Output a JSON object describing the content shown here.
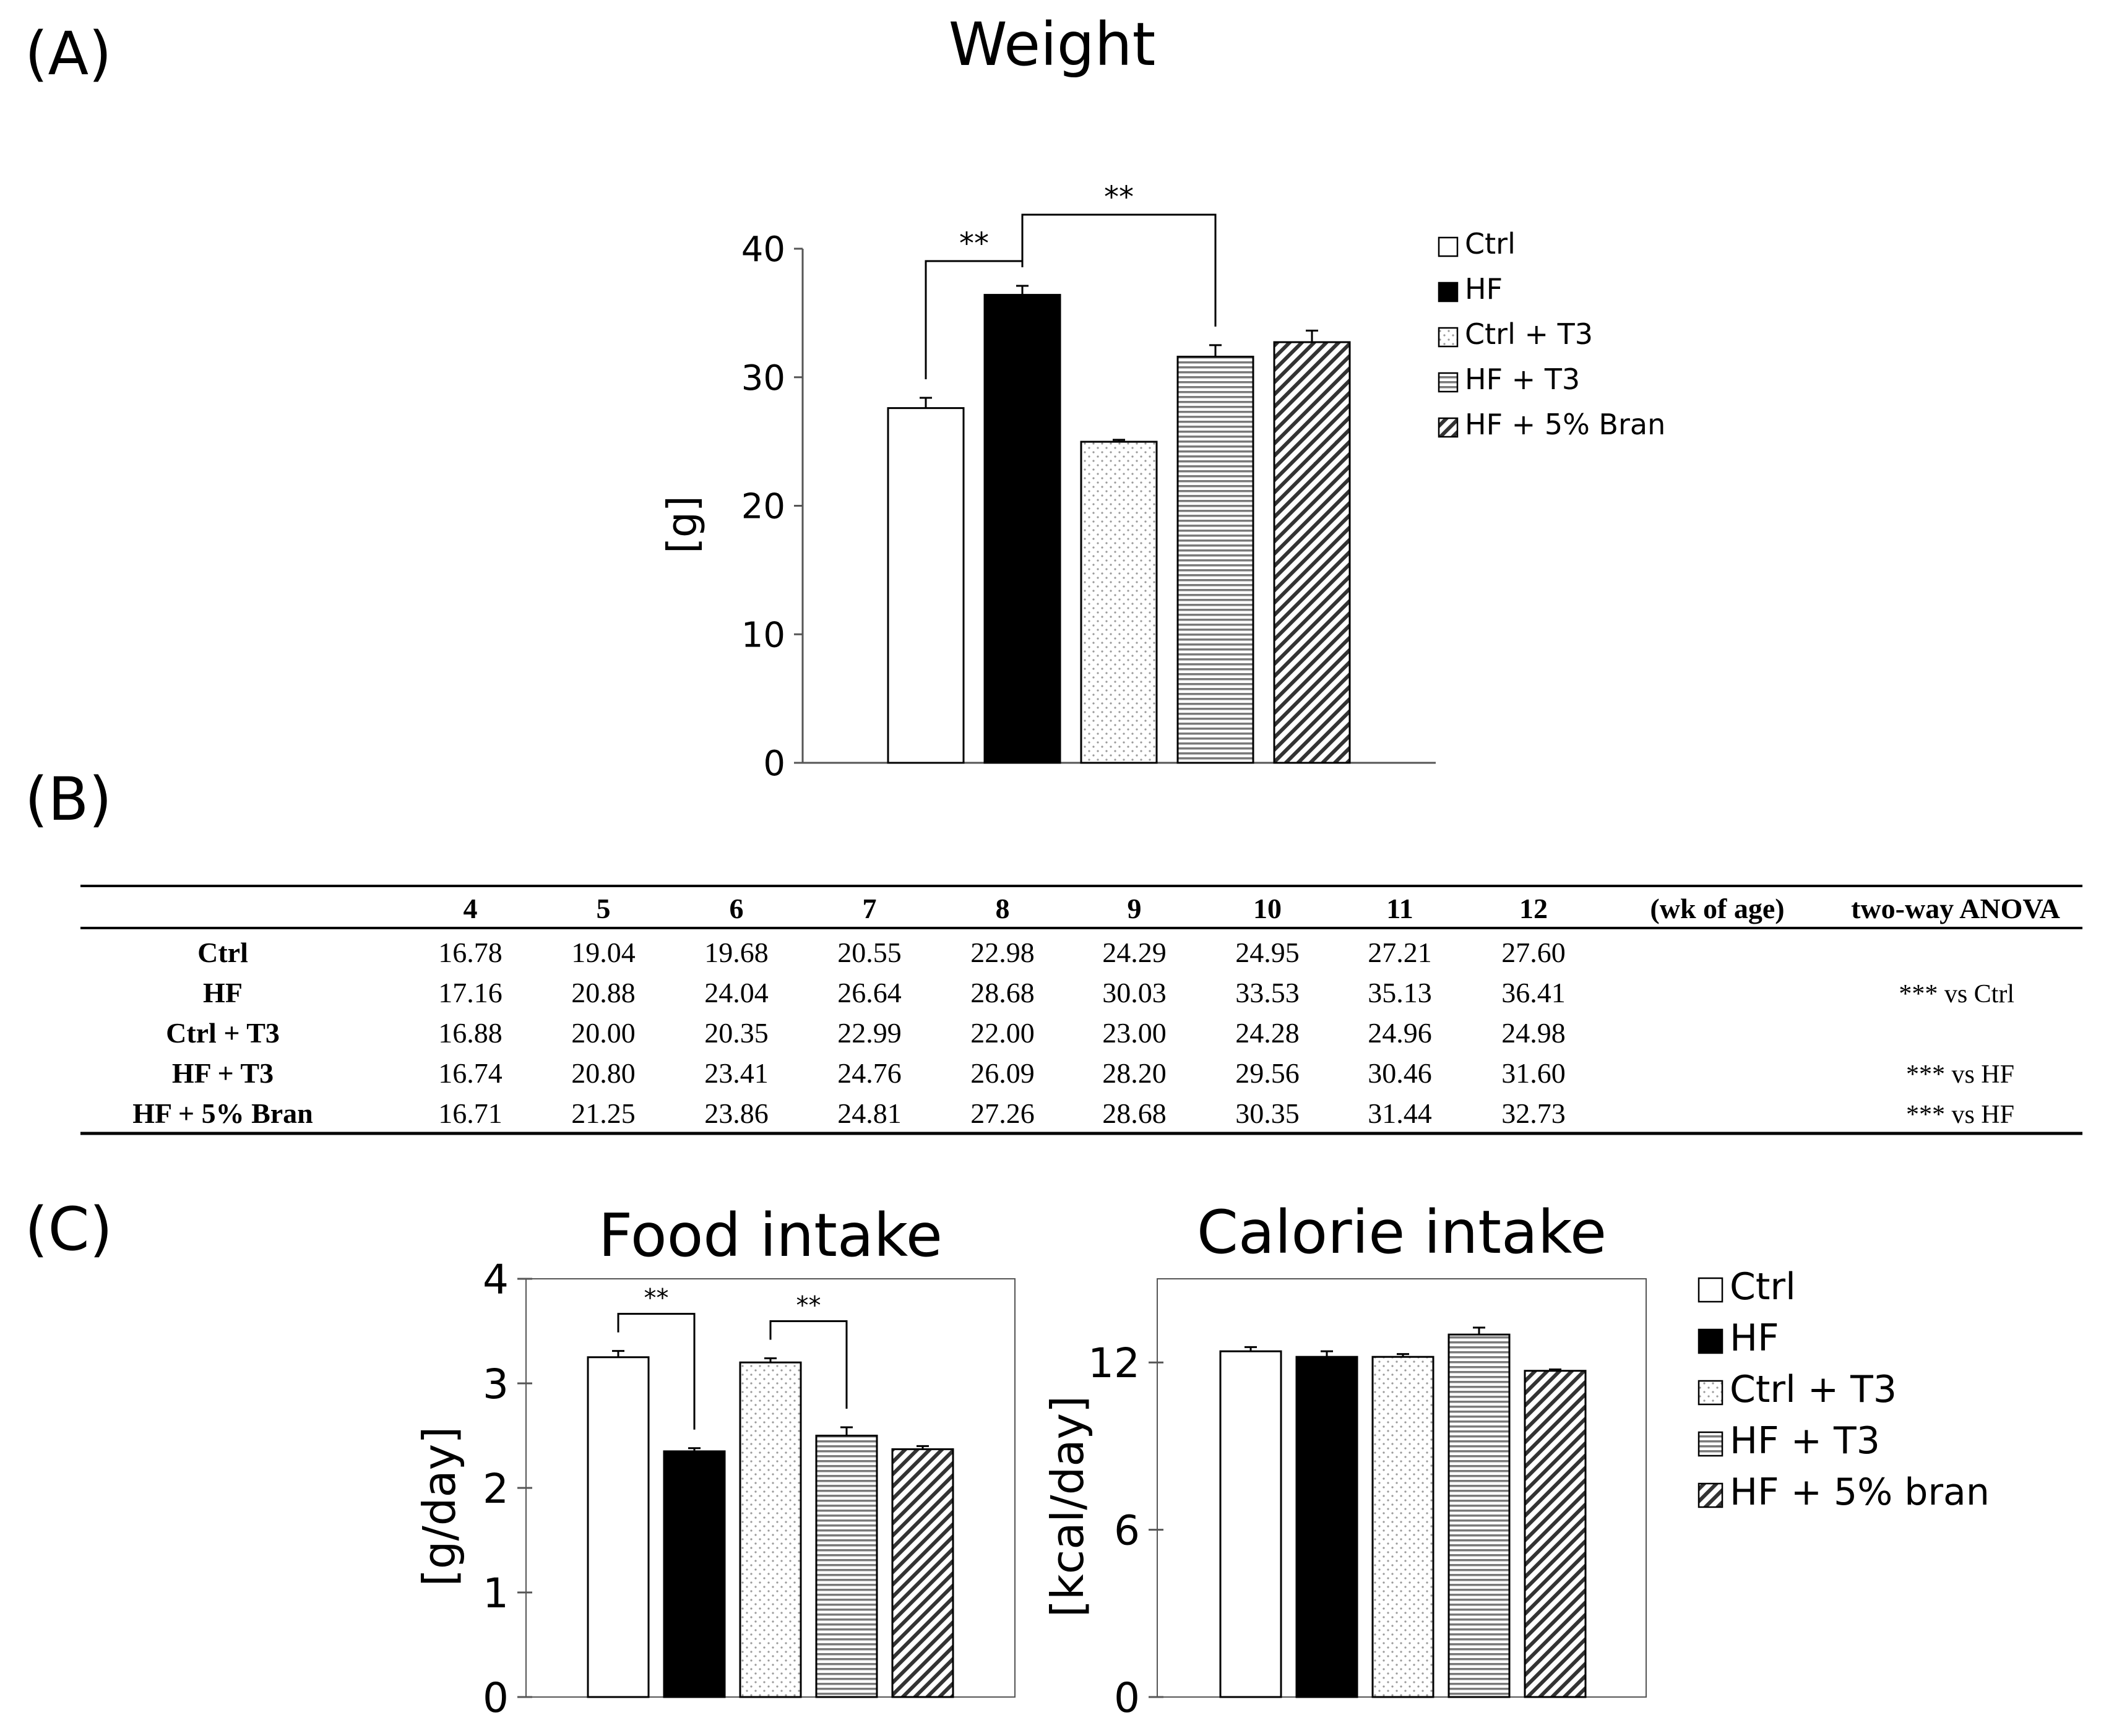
{
  "colors": {
    "ink": "#000000",
    "paper": "#ffffff",
    "dots": "#9a9a9a",
    "stripes": "#7a7a7a",
    "hatch": "#333333",
    "axis": "#555555"
  },
  "panel_a": {
    "label": "(A)",
    "chart_data": {
      "type": "bar",
      "title": "Weight",
      "ylabel": "[g]",
      "xlabel": "",
      "ylim": [
        0,
        40
      ],
      "yticks": [
        0,
        10,
        20,
        30,
        40
      ],
      "categories": [
        "Ctrl",
        "HF",
        "Ctrl + T3",
        "HF + T3",
        "HF + 5% Bran"
      ],
      "values": [
        27.6,
        36.41,
        24.98,
        31.6,
        32.73
      ],
      "errors": [
        0.8,
        0.7,
        0.15,
        0.9,
        0.9
      ],
      "fills": [
        "white",
        "black",
        "dots",
        "hstripes",
        "diag"
      ],
      "significance": [
        {
          "from": 0,
          "to": 1,
          "label": "**"
        },
        {
          "from": 1,
          "to": 3,
          "label": "**"
        }
      ],
      "legend_position": "top-right"
    },
    "legend": [
      "Ctrl",
      "HF",
      "Ctrl + T3",
      "HF + T3",
      "HF + 5% Bran"
    ]
  },
  "panel_b": {
    "label": "(B)",
    "chart_data": {
      "type": "table",
      "columns": [
        "",
        "4",
        "5",
        "6",
        "7",
        "8",
        "9",
        "10",
        "11",
        "12",
        "(wk of age)",
        "two-way ANOVA"
      ],
      "rows": [
        {
          "group": "Ctrl",
          "values": [
            "16.78",
            "19.04",
            "19.68",
            "20.55",
            "22.98",
            "24.29",
            "24.95",
            "27.21",
            "27.60"
          ],
          "anova": ""
        },
        {
          "group": "HF",
          "values": [
            "17.16",
            "20.88",
            "24.04",
            "26.64",
            "28.68",
            "30.03",
            "33.53",
            "35.13",
            "36.41"
          ],
          "anova": "*** vs Ctrl"
        },
        {
          "group": "Ctrl + T3",
          "values": [
            "16.88",
            "20.00",
            "20.35",
            "22.99",
            "22.00",
            "23.00",
            "24.28",
            "24.96",
            "24.98"
          ],
          "anova": ""
        },
        {
          "group": "HF + T3",
          "values": [
            "16.74",
            "20.80",
            "23.41",
            "24.76",
            "26.09",
            "28.20",
            "29.56",
            "30.46",
            "31.60"
          ],
          "anova": "*** vs HF"
        },
        {
          "group": "HF + 5% Bran",
          "values": [
            "16.71",
            "21.25",
            "23.86",
            "24.81",
            "27.26",
            "28.68",
            "30.35",
            "31.44",
            "32.73"
          ],
          "anova": "*** vs HF"
        }
      ]
    }
  },
  "panel_c": {
    "label": "(C)",
    "chart_data": [
      {
        "type": "bar",
        "title": "Food intake",
        "ylabel": "[g/day]",
        "ylim": [
          0,
          4
        ],
        "yticks": [
          0,
          1,
          2,
          3,
          4
        ],
        "categories": [
          "Ctrl",
          "HF",
          "Ctrl + T3",
          "HF + T3",
          "HF + 5% bran"
        ],
        "values": [
          3.25,
          2.35,
          3.2,
          2.5,
          2.37
        ],
        "errors": [
          0.06,
          0.03,
          0.04,
          0.08,
          0.03
        ],
        "fills": [
          "white",
          "black",
          "dots",
          "hstripes",
          "diag"
        ],
        "significance": [
          {
            "from": 0,
            "to": 1,
            "label": "**"
          },
          {
            "from": 2,
            "to": 3,
            "label": "**"
          }
        ]
      },
      {
        "type": "bar",
        "title": "Calorie intake",
        "ylabel": "[kcal/day]",
        "ylim": [
          0,
          15
        ],
        "yticks": [
          0,
          6,
          12
        ],
        "categories": [
          "Ctrl",
          "HF",
          "Ctrl + T3",
          "HF + T3",
          "HF + 5% bran"
        ],
        "values": [
          12.4,
          12.2,
          12.2,
          13.0,
          11.7
        ],
        "errors": [
          0.15,
          0.2,
          0.1,
          0.25,
          0.05
        ],
        "fills": [
          "white",
          "black",
          "dots",
          "hstripes",
          "diag"
        ],
        "significance": []
      }
    ],
    "legend": [
      "Ctrl",
      "HF",
      "Ctrl + T3",
      "HF + T3",
      "HF + 5% bran"
    ]
  }
}
